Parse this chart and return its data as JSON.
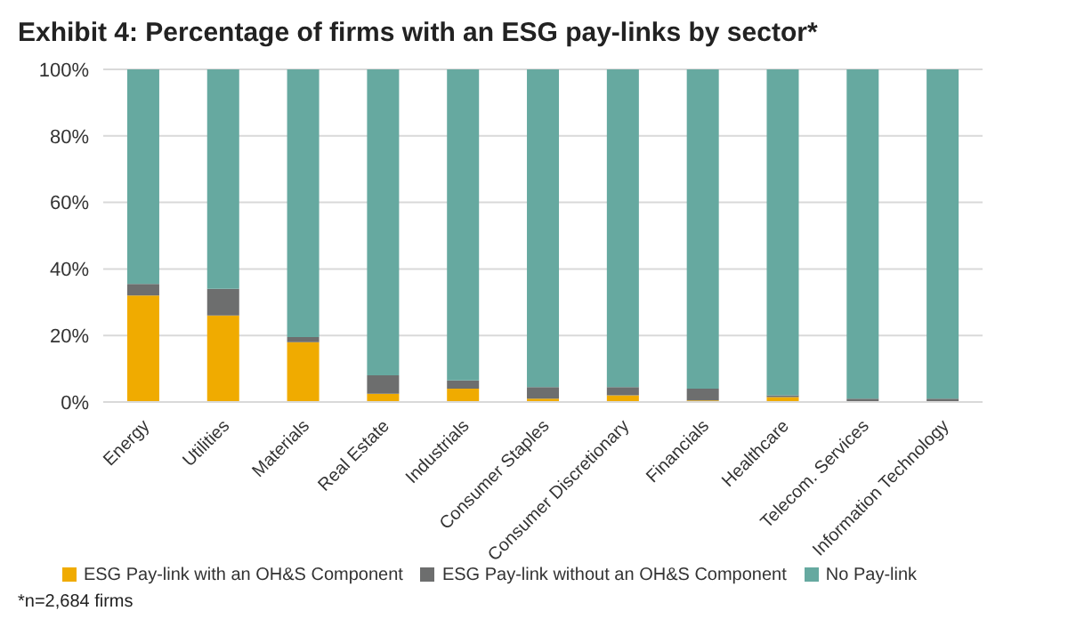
{
  "chart_data": {
    "type": "bar",
    "title": "Exhibit 4: Percentage of firms with an ESG pay-links by sector*",
    "categories": [
      "Energy",
      "Utilities",
      "Materials",
      "Real Estate",
      "Industrials",
      "Consumer Staples",
      "Consumer Discretionary",
      "Financials",
      "Healthcare",
      "Telecom. Services",
      "Information Technology"
    ],
    "series": [
      {
        "name": "ESG Pay-link with an OH&S Component",
        "color": "#f0ab00",
        "values": [
          32,
          26,
          18,
          2.5,
          4,
          1,
          2,
          0.5,
          1.5,
          0,
          0
        ]
      },
      {
        "name": "ESG Pay-link without an OH&S Component",
        "color": "#6d6e6e",
        "values": [
          3.5,
          8,
          1.5,
          5.5,
          2.5,
          3.5,
          2.5,
          3.5,
          0.5,
          1,
          1
        ]
      },
      {
        "name": "No Pay-link",
        "color": "#66a9a0",
        "values": [
          64.5,
          66,
          80.5,
          92,
          93.5,
          95.5,
          95.5,
          96,
          98,
          99,
          99
        ]
      }
    ],
    "stacked": true,
    "ylim": [
      0,
      100
    ],
    "yticks": [
      {
        "value": 0,
        "label": "0%"
      },
      {
        "value": 20,
        "label": "20%"
      },
      {
        "value": 40,
        "label": "40%"
      },
      {
        "value": 60,
        "label": "60%"
      },
      {
        "value": 80,
        "label": "80%"
      },
      {
        "value": 100,
        "label": "100%"
      }
    ],
    "grid": "y",
    "legend": "bottom",
    "annotations": [
      "*n=2,684 firms"
    ]
  }
}
